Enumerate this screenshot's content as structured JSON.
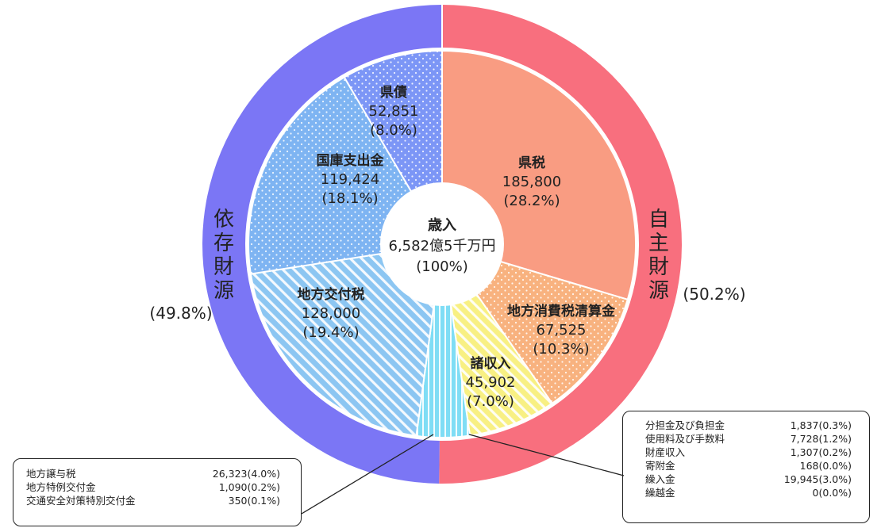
{
  "chart_data": {
    "type": "pie",
    "center_label": {
      "title": "歳入",
      "amount": "6,582億5千万円",
      "percent": "(100%)"
    },
    "outer_ring": [
      {
        "label_chars": [
          "自",
          "主",
          "財",
          "源"
        ],
        "percent_text": "(50.2%)",
        "value": 50.2,
        "color": "#F86F7E"
      },
      {
        "label_chars": [
          "依",
          "存",
          "財",
          "源"
        ],
        "percent_text": "(49.8%)",
        "value": 49.8,
        "color": "#7B76F5"
      }
    ],
    "slices": [
      {
        "name": "県税",
        "value_text": "185,800",
        "percent_text": "(28.2%)",
        "value": 185800,
        "color": "#F99C82",
        "pattern": "solid"
      },
      {
        "name": "地方消費税清算金",
        "value_text": "67,525",
        "percent_text": "(10.3%)",
        "value": 67525,
        "color": "#F8B27F",
        "pattern": "dots"
      },
      {
        "name": "諸収入",
        "value_text": "45,902",
        "percent_text": "(7.0%)",
        "value": 45902,
        "color": "#F8F083",
        "pattern": "diagonal"
      },
      {
        "name": "",
        "value_text": "",
        "percent_text": "",
        "value": 27763,
        "color": "#7FDDF5",
        "pattern": "vertical"
      },
      {
        "name": "地方交付税",
        "value_text": "128,000",
        "percent_text": "(19.4%)",
        "value": 128000,
        "color": "#8CC6F2",
        "pattern": "diagonal"
      },
      {
        "name": "国庫支出金",
        "value_text": "119,424",
        "percent_text": "(18.1%)",
        "value": 119424,
        "color": "#7EB4F2",
        "pattern": "dots"
      },
      {
        "name": "県債",
        "value_text": "52,851",
        "percent_text": "(8.0%)",
        "value": 52851,
        "color": "#7C96F6",
        "pattern": "dots"
      }
    ],
    "callouts": {
      "left": [
        {
          "name": "地方譲与税",
          "value_text": "26,323(4.0%)"
        },
        {
          "name": "地方特例交付金",
          "value_text": "1,090(0.2%)"
        },
        {
          "name": "交通安全対策特別交付金",
          "value_text": "350(0.1%)"
        }
      ],
      "right": [
        {
          "name": "分担金及び負担金",
          "value_text": "1,837(0.3%)"
        },
        {
          "name": "使用料及び手数料",
          "value_text": "7,728(1.2%)"
        },
        {
          "name": "財産収入",
          "value_text": "1,307(0.2%)"
        },
        {
          "name": "寄附金",
          "value_text": "168(0.0%)"
        },
        {
          "name": "繰入金",
          "value_text": "19,945(3.0%)"
        },
        {
          "name": "繰越金",
          "value_text": "0(0.0%)"
        }
      ]
    }
  }
}
